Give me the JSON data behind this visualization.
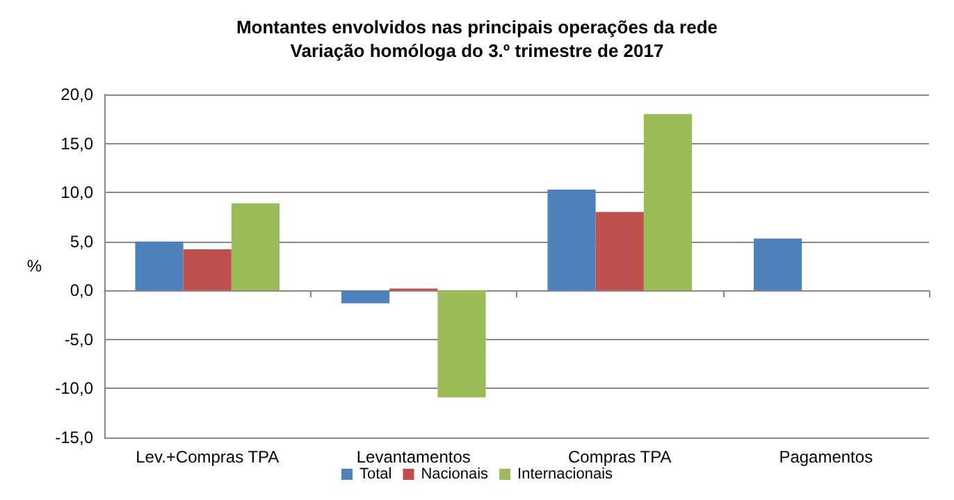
{
  "chart_data": {
    "type": "bar",
    "title": "Montantes envolvidos nas principais operações da rede",
    "subtitle": "Variação homóloga do 3.º trimestre de 2017",
    "ylabel": "%",
    "categories": [
      "Lev.+Compras TPA",
      "Levantamentos",
      "Compras TPA",
      "Pagamentos"
    ],
    "series": [
      {
        "name": "Total",
        "color": "#4f81bd",
        "values": [
          5.0,
          -1.3,
          10.3,
          5.3
        ]
      },
      {
        "name": "Nacionais",
        "color": "#c0504d",
        "values": [
          4.2,
          0.2,
          8.0,
          null
        ]
      },
      {
        "name": "Internacionais",
        "color": "#9bbb59",
        "values": [
          8.9,
          -10.9,
          18.0,
          null
        ]
      }
    ],
    "ylim": [
      -15,
      20
    ],
    "yticks": [
      {
        "value": -15,
        "label": "-15,0"
      },
      {
        "value": -10,
        "label": "-10,0"
      },
      {
        "value": -5,
        "label": "-5,0"
      },
      {
        "value": 0,
        "label": "0,0"
      },
      {
        "value": 5,
        "label": "5,0"
      },
      {
        "value": 10,
        "label": "10,0"
      },
      {
        "value": 15,
        "label": "15,0"
      },
      {
        "value": 20,
        "label": "20,0"
      }
    ],
    "grid": "y",
    "legend": "bottom"
  }
}
